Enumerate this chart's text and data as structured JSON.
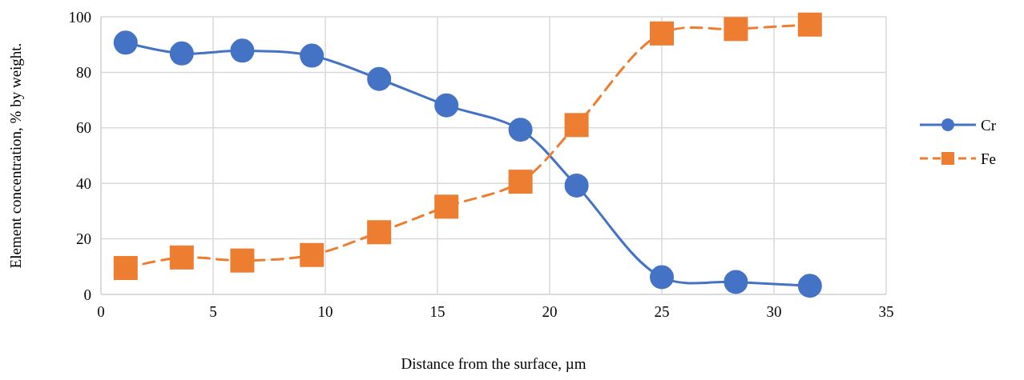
{
  "chart_data": {
    "type": "line",
    "xlabel": "Distance from the surface, µm",
    "ylabel": "Element concentration, % by weight.",
    "x": [
      1.1,
      3.6,
      6.3,
      9.4,
      12.4,
      15.4,
      18.7,
      21.2,
      25.0,
      28.3,
      31.6
    ],
    "series": [
      {
        "name": "Cr",
        "color": "#4472c4",
        "marker": "circle",
        "line_style": "solid",
        "values": [
          90.7,
          86.8,
          87.8,
          86,
          77.6,
          68.1,
          59.3,
          39.2,
          6.2,
          4.5,
          3.1
        ]
      },
      {
        "name": "Fe",
        "color": "#ed7d31",
        "marker": "square",
        "line_style": "dashed",
        "values": [
          9.5,
          13.3,
          12.2,
          14.2,
          22.4,
          31.6,
          40.6,
          61,
          94,
          95.6,
          97.2
        ]
      }
    ],
    "xlim": [
      0,
      35
    ],
    "xticks": [
      0,
      5,
      10,
      15,
      20,
      25,
      30,
      35
    ],
    "ylim": [
      0,
      100
    ],
    "yticks": [
      0,
      20,
      40,
      60,
      80,
      100
    ],
    "grid": true,
    "legend": "right"
  }
}
